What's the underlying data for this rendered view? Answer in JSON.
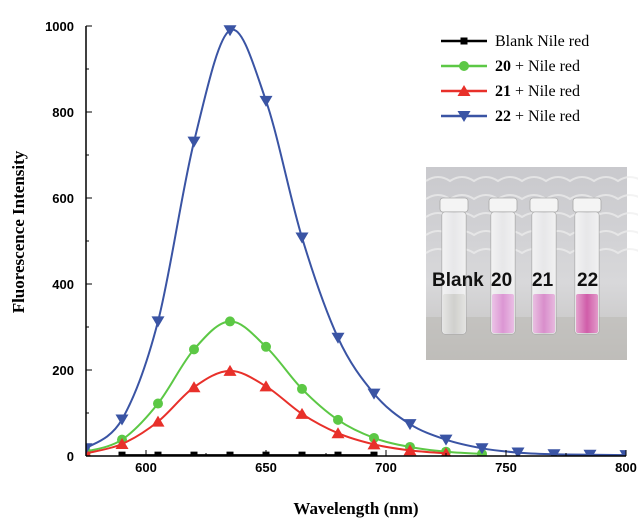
{
  "chart_data": {
    "type": "line",
    "title": "",
    "xlabel": "Wavelength (nm)",
    "ylabel": "Fluorescence Intensity",
    "xlim": [
      575,
      800
    ],
    "ylim": [
      0,
      1000
    ],
    "xticks": [
      600,
      650,
      700,
      750,
      800
    ],
    "yticks": [
      0,
      200,
      400,
      600,
      800,
      1000
    ],
    "grid": false,
    "legend_position": "top-right",
    "series": [
      {
        "name_num": "",
        "name_text": "Blank Nile red",
        "color": "#000000",
        "marker": "square",
        "x": [
          590,
          605,
          620,
          635,
          650,
          665,
          680,
          695
        ],
        "y": [
          2,
          2,
          2,
          2,
          2,
          2,
          2,
          2
        ]
      },
      {
        "name_num": "20",
        "name_text": " + Nile red",
        "color": "#5cc845",
        "marker": "circle",
        "x": [
          575,
          590,
          605,
          620,
          635,
          650,
          665,
          680,
          695,
          710,
          725,
          740
        ],
        "y": [
          10,
          38,
          122,
          248,
          313,
          254,
          156,
          84,
          42,
          21,
          10,
          5
        ]
      },
      {
        "name_num": "21",
        "name_text": " + Nile red",
        "color": "#e8302a",
        "marker": "triangle-up",
        "x": [
          575,
          590,
          605,
          620,
          635,
          650,
          665,
          680,
          695,
          710,
          725
        ],
        "y": [
          6,
          28,
          80,
          160,
          198,
          162,
          98,
          53,
          27,
          13,
          6
        ]
      },
      {
        "name_num": "22",
        "name_text": " + Nile red",
        "color": "#3a54a4",
        "marker": "triangle-down",
        "x": [
          575,
          590,
          605,
          620,
          635,
          650,
          665,
          680,
          695,
          710,
          725,
          740,
          755,
          770,
          785,
          800
        ],
        "y": [
          18,
          85,
          313,
          731,
          990,
          826,
          508,
          275,
          145,
          74,
          38,
          18,
          8,
          4,
          3,
          2
        ]
      }
    ],
    "inset": {
      "labels": [
        "Blank",
        "20",
        "21",
        "22"
      ],
      "liquid_colors": [
        "#c8c8c4",
        "#d684cc",
        "#d27ac2",
        "#c8409a"
      ]
    }
  }
}
